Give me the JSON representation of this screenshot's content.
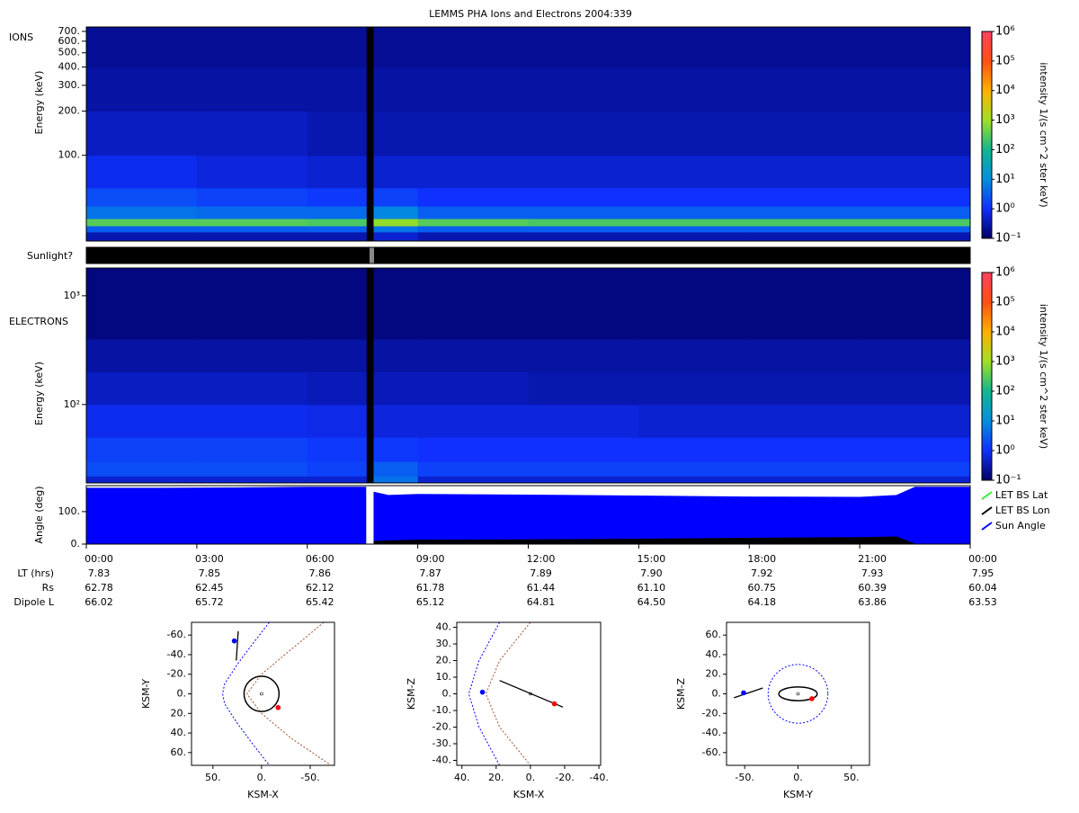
{
  "title": "LEMMS PHA Ions and Electrons  2004:339",
  "sunlight_label": "Sunlight?",
  "chart_data": [
    {
      "type": "heatmap",
      "label": "IONS",
      "ylabel": "Energy (keV)",
      "log_y": true,
      "xlim": [
        0,
        24
      ],
      "x": [
        0,
        3,
        6,
        7.6,
        7.8,
        9,
        12,
        15,
        18,
        21,
        24
      ],
      "y": [
        26,
        30,
        33,
        37,
        45,
        60,
        100,
        200,
        400,
        750
      ],
      "z": [
        [
          0.3,
          0.3,
          0.3,
          null,
          0.5,
          0.3,
          0.3,
          0.3,
          0.3,
          0.3
        ],
        [
          3,
          3,
          3,
          null,
          5,
          3,
          3,
          3,
          3,
          3
        ],
        [
          300,
          300,
          250,
          null,
          800,
          300,
          250,
          250,
          250,
          250
        ],
        [
          5,
          4,
          4,
          null,
          8,
          3,
          3,
          3,
          3,
          3
        ],
        [
          2,
          1.5,
          1.2,
          null,
          1.5,
          1,
          1,
          1,
          1,
          1
        ],
        [
          0.8,
          0.6,
          0.5,
          null,
          0.5,
          0.5,
          0.5,
          0.5,
          0.5,
          0.5
        ],
        [
          0.4,
          0.4,
          0.3,
          null,
          0.3,
          0.3,
          0.3,
          0.3,
          0.3,
          0.3
        ],
        [
          0.25,
          0.25,
          0.25,
          null,
          0.25,
          0.25,
          0.25,
          0.25,
          0.25,
          0.25
        ],
        [
          0.2,
          0.2,
          0.2,
          null,
          0.2,
          0.2,
          0.2,
          0.2,
          0.2,
          0.2
        ]
      ],
      "ylim": [
        26,
        750
      ],
      "yticks": [
        {
          "value": 100,
          "label": "100."
        },
        {
          "value": 200,
          "label": "200."
        },
        {
          "value": 300,
          "label": "300."
        },
        {
          "value": 400,
          "label": "400."
        },
        {
          "value": 500,
          "label": "500."
        },
        {
          "value": 600,
          "label": "600."
        },
        {
          "value": 700,
          "label": "700."
        }
      ],
      "clim": [
        0.1,
        1000000
      ],
      "cticks": [
        {
          "value": 0.1,
          "label": "10⁻¹"
        },
        {
          "value": 1,
          "label": "10⁰"
        },
        {
          "value": 10,
          "label": "10¹"
        },
        {
          "value": 100,
          "label": "10²"
        },
        {
          "value": 1000,
          "label": "10³"
        },
        {
          "value": 10000,
          "label": "10⁴"
        },
        {
          "value": 100000,
          "label": "10⁵"
        },
        {
          "value": 1000000,
          "label": "10⁶"
        }
      ],
      "clabel": "intensity 1/(s cm^2 ster keV)",
      "colormap": [
        "#000066",
        "#1030ff",
        "#0090e0",
        "#10b890",
        "#a0e020",
        "#ffb000",
        "#ff5010",
        "#ff4060"
      ]
    },
    {
      "type": "heatmap",
      "label": "ELECTRONS",
      "ylabel": "Energy (keV)",
      "log_y": true,
      "xlim": [
        0,
        24
      ],
      "x": [
        0,
        3,
        6,
        7.6,
        7.8,
        9,
        12,
        15,
        18,
        21,
        24
      ],
      "y": [
        19,
        22,
        30,
        50,
        100,
        200,
        400,
        1800
      ],
      "z": [
        [
          0.5,
          0.5,
          0.5,
          null,
          5,
          0.5,
          0.5,
          0.5,
          0.5,
          0.5
        ],
        [
          2,
          2,
          1.5,
          null,
          3,
          1.5,
          1.5,
          1.5,
          1.5,
          1.5
        ],
        [
          1.5,
          1.5,
          1.2,
          null,
          1.2,
          1,
          1,
          1,
          1,
          1
        ],
        [
          0.8,
          0.8,
          0.7,
          null,
          0.6,
          0.6,
          0.6,
          0.5,
          0.5,
          0.5
        ],
        [
          0.4,
          0.4,
          0.35,
          null,
          0.35,
          0.35,
          0.3,
          0.3,
          0.3,
          0.3
        ],
        [
          0.25,
          0.25,
          0.25,
          null,
          0.25,
          0.25,
          0.25,
          0.25,
          0.25,
          0.25
        ],
        [
          0.15,
          0.15,
          0.15,
          null,
          0.15,
          0.15,
          0.15,
          0.15,
          0.15,
          0.15
        ]
      ],
      "ylim": [
        19,
        1800
      ],
      "yticks": [
        {
          "value": 100,
          "label": "10²"
        },
        {
          "value": 1000,
          "label": "10³"
        }
      ],
      "clim": [
        0.1,
        1000000
      ],
      "cticks": [
        {
          "value": 0.1,
          "label": "10⁻¹"
        },
        {
          "value": 1,
          "label": "10⁰"
        },
        {
          "value": 10,
          "label": "10¹"
        },
        {
          "value": 100,
          "label": "10²"
        },
        {
          "value": 1000,
          "label": "10³"
        },
        {
          "value": 10000,
          "label": "10⁴"
        },
        {
          "value": 100000,
          "label": "10⁵"
        },
        {
          "value": 1000000,
          "label": "10⁶"
        }
      ],
      "clabel": "intensity 1/(s cm^2 ster keV)",
      "colormap": [
        "#000066",
        "#1030ff",
        "#0090e0",
        "#10b890",
        "#a0e020",
        "#ffb000",
        "#ff5010",
        "#ff4060"
      ]
    },
    {
      "type": "area",
      "ylabel": "Angle (deg)",
      "legend": "right",
      "xlim": [
        0,
        24
      ],
      "ylim": [
        0,
        180
      ],
      "x": [
        0,
        2,
        4,
        6,
        7.6,
        7.7,
        7.8,
        8.2,
        9,
        12,
        15,
        18,
        21,
        22,
        22.5,
        24
      ],
      "series": [
        {
          "name": "LET BS Lat",
          "color": "#33ee33",
          "values": [
            null,
            null,
            null,
            null,
            null,
            null,
            null,
            null,
            null,
            null,
            null,
            null,
            null,
            null,
            null,
            null
          ]
        },
        {
          "name": "LET BS Lon",
          "color": "#000000",
          "values": [
            0,
            0,
            0,
            0,
            0,
            null,
            8,
            10,
            12,
            13,
            15,
            18,
            20,
            22,
            0,
            0
          ]
        },
        {
          "name": "Sun Angle",
          "color": "#0000ff",
          "values": [
            172,
            172,
            173,
            175,
            175,
            null,
            160,
            150,
            153,
            151,
            148,
            145,
            144,
            150,
            175,
            175
          ]
        }
      ],
      "yticks": [
        {
          "value": 0,
          "label": "0."
        },
        {
          "value": 100,
          "label": "100."
        }
      ],
      "xticks": [
        {
          "value": 0,
          "label": "00:00"
        },
        {
          "value": 3,
          "label": "03:00"
        },
        {
          "value": 6,
          "label": "06:00"
        },
        {
          "value": 9,
          "label": "09:00"
        },
        {
          "value": 12,
          "label": "12:00"
        },
        {
          "value": 15,
          "label": "15:00"
        },
        {
          "value": 18,
          "label": "18:00"
        },
        {
          "value": 21,
          "label": "21:00"
        },
        {
          "value": 24,
          "label": "00:00"
        }
      ],
      "rows": [
        {
          "name": "LT (hrs)",
          "values": [
            "7.83",
            "7.85",
            "7.86",
            "7.87",
            "7.89",
            "7.90",
            "7.92",
            "7.93",
            "7.95"
          ]
        },
        {
          "name": "Rs",
          "values": [
            "62.78",
            "62.45",
            "62.12",
            "61.78",
            "61.44",
            "61.10",
            "60.75",
            "60.39",
            "60.04"
          ]
        },
        {
          "name": "Dipole L",
          "values": [
            "66.02",
            "65.72",
            "65.42",
            "65.12",
            "64.81",
            "64.50",
            "64.18",
            "63.86",
            "63.53"
          ]
        }
      ]
    },
    {
      "type": "orbit",
      "xlabel": "KSM-X",
      "ylabel": "KSM-Y",
      "xlim": [
        72,
        -75
      ],
      "ylim": [
        73,
        -73
      ],
      "xticks": [
        {
          "value": 50,
          "label": "50."
        },
        {
          "value": 0,
          "label": "0."
        },
        {
          "value": -50,
          "label": "-50."
        }
      ],
      "yticks": [
        {
          "value": -60,
          "label": "-60."
        },
        {
          "value": -40,
          "label": "-40."
        },
        {
          "value": -20,
          "label": "-20."
        },
        {
          "value": 0,
          "label": "0."
        },
        {
          "value": 20,
          "label": "20."
        },
        {
          "value": 40,
          "label": "40."
        },
        {
          "value": 60,
          "label": "60."
        }
      ],
      "curves": [
        {
          "color": "#0000ff",
          "dashed": true,
          "x": [
            -8,
            10,
            25,
            38,
            40,
            38,
            25,
            10,
            -8
          ],
          "y": [
            -73,
            -50,
            -30,
            -10,
            0,
            10,
            30,
            50,
            73
          ]
        },
        {
          "color": "#a0522d",
          "dashed": true,
          "x": [
            -64,
            -30,
            0,
            15,
            0,
            -30,
            -70
          ],
          "y": [
            -73,
            -45,
            -20,
            0,
            20,
            45,
            72
          ]
        },
        {
          "color": "#000000",
          "dashed": false,
          "x": [
            24,
            26
          ],
          "y": [
            -64,
            -34
          ]
        }
      ],
      "ellipses": [
        {
          "color": "#000000",
          "dashed": false,
          "x": 0,
          "y": 0,
          "rx": 18,
          "ry": 18
        }
      ],
      "points": [
        {
          "color": "#000000",
          "x": 0,
          "y": 0
        },
        {
          "color": "#ff0000",
          "x": -17,
          "y": 14
        },
        {
          "color": "#0000ff",
          "x": 28,
          "y": -54
        }
      ]
    },
    {
      "type": "orbit",
      "xlabel": "KSM-X",
      "ylabel": "KSM-Z",
      "xlim": [
        43,
        -41
      ],
      "ylim": [
        -43,
        43
      ],
      "xticks": [
        {
          "value": 40,
          "label": "40."
        },
        {
          "value": 20,
          "label": "20."
        },
        {
          "value": 0,
          "label": "0."
        },
        {
          "value": -20,
          "label": "-20."
        },
        {
          "value": -40,
          "label": "-40."
        }
      ],
      "yticks": [
        {
          "value": 40,
          "label": "40."
        },
        {
          "value": 30,
          "label": "30."
        },
        {
          "value": 20,
          "label": "20."
        },
        {
          "value": 10,
          "label": "10."
        },
        {
          "value": 0,
          "label": "0."
        },
        {
          "value": -10,
          "label": "-10."
        },
        {
          "value": -20,
          "label": "-20."
        },
        {
          "value": -30,
          "label": "-30."
        },
        {
          "value": -40,
          "label": "-40."
        }
      ],
      "curves": [
        {
          "color": "#0000ff",
          "dashed": true,
          "x": [
            18,
            30,
            36,
            30,
            18
          ],
          "y": [
            43,
            20,
            0,
            -20,
            -43
          ]
        },
        {
          "color": "#a0522d",
          "dashed": true,
          "x": [
            0,
            18,
            26,
            18,
            0
          ],
          "y": [
            43,
            20,
            0,
            -20,
            -43
          ]
        },
        {
          "color": "#000000",
          "dashed": false,
          "x": [
            18,
            -19
          ],
          "y": [
            8,
            -8
          ]
        }
      ],
      "ellipses": [],
      "points": [
        {
          "color": "#000000",
          "x": 0,
          "y": 0
        },
        {
          "color": "#ff0000",
          "x": -14,
          "y": -6
        },
        {
          "color": "#0000ff",
          "x": 28,
          "y": 1
        }
      ]
    },
    {
      "type": "orbit",
      "xlabel": "KSM-Y",
      "ylabel": "KSM-Z",
      "xlim": [
        -67,
        67
      ],
      "ylim": [
        -73,
        73
      ],
      "xticks": [
        {
          "value": -50,
          "label": "-50."
        },
        {
          "value": 0,
          "label": "0."
        },
        {
          "value": 50,
          "label": "50."
        }
      ],
      "yticks": [
        {
          "value": 60,
          "label": "60."
        },
        {
          "value": 40,
          "label": "40."
        },
        {
          "value": 20,
          "label": "20."
        },
        {
          "value": 0,
          "label": "0."
        },
        {
          "value": -20,
          "label": "-20."
        },
        {
          "value": -40,
          "label": "-40."
        },
        {
          "value": -60,
          "label": "-60."
        }
      ],
      "curves": [
        {
          "color": "#000000",
          "dashed": false,
          "x": [
            -60,
            -33
          ],
          "y": [
            -4,
            6
          ]
        }
      ],
      "ellipses": [
        {
          "color": "#000000",
          "dashed": false,
          "x": 0,
          "y": 0,
          "rx": 18,
          "ry": 7
        },
        {
          "color": "#0000ff",
          "dashed": true,
          "x": 0,
          "y": 0,
          "rx": 28,
          "ry": 30
        }
      ],
      "points": [
        {
          "color": "#000000",
          "x": 0,
          "y": 0
        },
        {
          "color": "#ff0000",
          "x": 13,
          "y": -5
        },
        {
          "color": "#0000ff",
          "x": -51,
          "y": 1
        }
      ]
    }
  ]
}
